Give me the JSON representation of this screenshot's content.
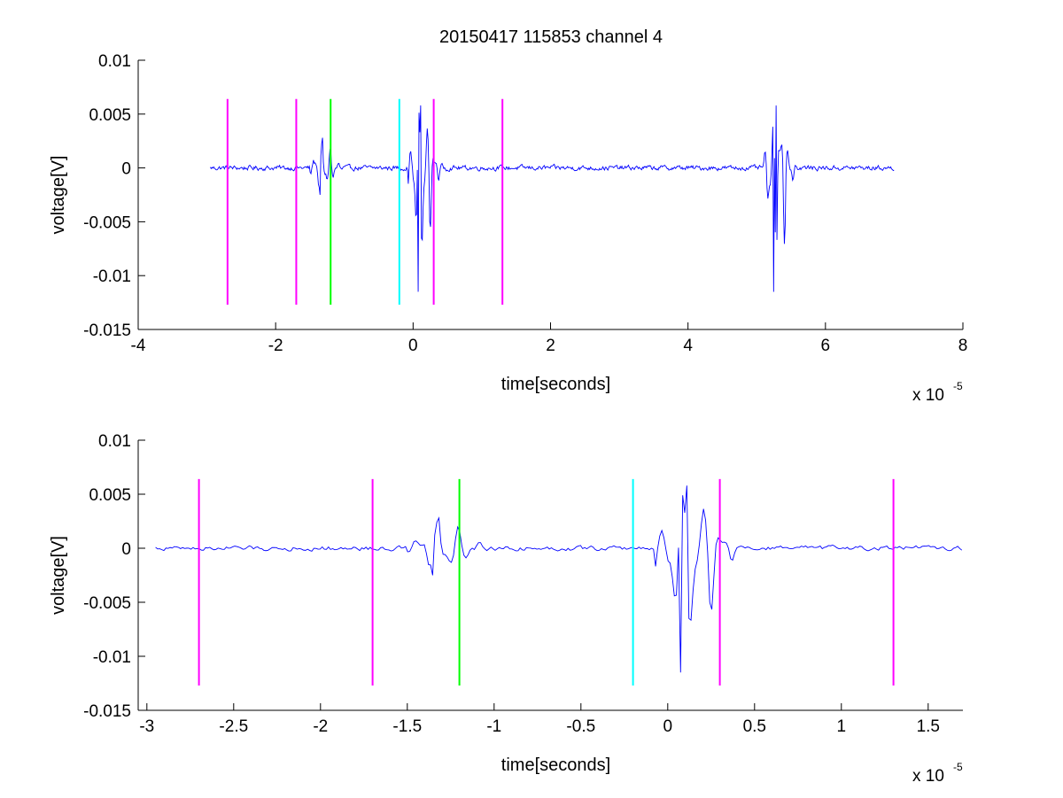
{
  "chart_data": [
    {
      "type": "line",
      "title": "20150417 115853 channel 4",
      "xlabel": "time[seconds]",
      "ylabel": "voltage[V]",
      "x_exponent_label": "x 10",
      "x_exponent_power": "-5",
      "xlim": [
        -4,
        8
      ],
      "ylim": [
        -0.015,
        0.01
      ],
      "xticks": [
        -4,
        -2,
        0,
        2,
        4,
        6,
        8
      ],
      "xtick_labels": [
        "-4",
        "-2",
        "0",
        "2",
        "4",
        "6",
        "8"
      ],
      "yticks": [
        0.01,
        0.005,
        0,
        -0.005,
        -0.01,
        -0.015
      ],
      "ytick_labels": [
        "0.01",
        "0.005",
        "0",
        "-0.005",
        "-0.01",
        "-0.015"
      ],
      "grid": false,
      "signal": {
        "color": "#0000ff",
        "x_range": [
          -2.95,
          7.0
        ],
        "noise_amplitude": 0.0004,
        "bursts": [
          {
            "t": -1.35,
            "peak_max": 0.0028,
            "peak_min": -0.0025
          },
          {
            "t": 0.08,
            "peak_max": 0.0058,
            "peak_min": -0.0115
          },
          {
            "t": 5.25,
            "peak_max": 0.0058,
            "peak_min": -0.0115
          }
        ]
      },
      "markers": [
        {
          "x": -2.7,
          "color": "#ff00ff",
          "y_top": 0.0064,
          "y_bottom": -0.0127
        },
        {
          "x": -1.7,
          "color": "#ff00ff",
          "y_top": 0.0064,
          "y_bottom": -0.0127
        },
        {
          "x": -1.2,
          "color": "#00ff00",
          "y_top": 0.0064,
          "y_bottom": -0.0127
        },
        {
          "x": -0.2,
          "color": "#00ffff",
          "y_top": 0.0064,
          "y_bottom": -0.0127
        },
        {
          "x": 0.3,
          "color": "#ff00ff",
          "y_top": 0.0064,
          "y_bottom": -0.0127
        },
        {
          "x": 1.3,
          "color": "#ff00ff",
          "y_top": 0.0064,
          "y_bottom": -0.0127
        }
      ]
    },
    {
      "type": "line",
      "title": "",
      "xlabel": "time[seconds]",
      "ylabel": "voltage[V]",
      "x_exponent_label": "x 10",
      "x_exponent_power": "-5",
      "xlim": [
        -3.05,
        1.7
      ],
      "ylim": [
        -0.015,
        0.01
      ],
      "xticks": [
        -3,
        -2.5,
        -2,
        -1.5,
        -1,
        -0.5,
        0,
        0.5,
        1,
        1.5
      ],
      "xtick_labels": [
        "-3",
        "-2.5",
        "-2",
        "-1.5",
        "-1",
        "-0.5",
        "0",
        "0.5",
        "1",
        "1.5"
      ],
      "yticks": [
        0.01,
        0.005,
        0,
        -0.005,
        -0.01,
        -0.015
      ],
      "ytick_labels": [
        "0.01",
        "0.005",
        "0",
        "-0.005",
        "-0.01",
        "-0.015"
      ],
      "grid": false,
      "signal": {
        "color": "#0000ff",
        "x_range": [
          -2.95,
          1.7
        ],
        "noise_amplitude": 0.0004,
        "bursts": [
          {
            "t": -1.35,
            "peak_max": 0.0028,
            "peak_min": -0.0025
          },
          {
            "t": 0.08,
            "peak_max": 0.0058,
            "peak_min": -0.0115
          }
        ]
      },
      "markers": [
        {
          "x": -2.7,
          "color": "#ff00ff",
          "y_top": 0.0064,
          "y_bottom": -0.0127
        },
        {
          "x": -1.7,
          "color": "#ff00ff",
          "y_top": 0.0064,
          "y_bottom": -0.0127
        },
        {
          "x": -1.2,
          "color": "#00ff00",
          "y_top": 0.0064,
          "y_bottom": -0.0127
        },
        {
          "x": -0.2,
          "color": "#00ffff",
          "y_top": 0.0064,
          "y_bottom": -0.0127
        },
        {
          "x": 0.3,
          "color": "#ff00ff",
          "y_top": 0.0064,
          "y_bottom": -0.0127
        },
        {
          "x": 1.3,
          "color": "#ff00ff",
          "y_top": 0.0064,
          "y_bottom": -0.0127
        }
      ]
    }
  ]
}
